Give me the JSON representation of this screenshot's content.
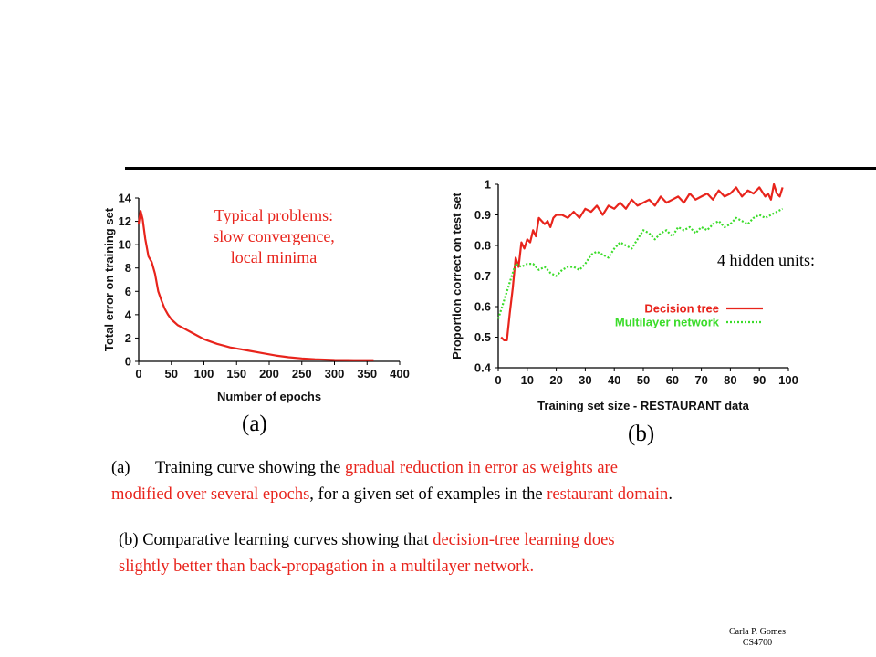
{
  "slide": {
    "note_a": [
      "Typical problems:",
      "slow convergence,",
      "local minima"
    ],
    "note_b": "4 hidden units:",
    "label_a": "(a)",
    "label_b": "(b)",
    "caption_a": {
      "marker": "(a)",
      "line1_black": "Training curve showing the ",
      "line1_red": "gradual reduction in error as weights are",
      "line2_red": "modified over several epochs",
      "line2_black1": ", for a given set of examples in the ",
      "line2_red2": "restaurant domain",
      "line2_black2": "."
    },
    "caption_b": {
      "line1_black": "(b) Comparative learning curves showing that ",
      "line1_red": "decision-tree learning  does",
      "line2_red": "slightly better than back-propagation in a multilayer network."
    },
    "footer": [
      "Carla P. Gomes",
      "CS4700"
    ]
  },
  "chart_data": [
    {
      "type": "line",
      "xlabel": "Number of epochs",
      "ylabel": "Total error on training set",
      "xlim": [
        0,
        400
      ],
      "ylim": [
        0,
        14
      ],
      "xticks": [
        0,
        50,
        100,
        150,
        200,
        250,
        300,
        350,
        400
      ],
      "yticks": [
        0,
        2,
        4,
        6,
        8,
        10,
        12,
        14
      ],
      "color": "#e8241c",
      "series": [
        {
          "x": [
            0,
            3,
            6,
            10,
            15,
            20,
            25,
            30,
            35,
            40,
            45,
            50,
            60,
            70,
            80,
            90,
            100,
            110,
            120,
            130,
            140,
            150,
            170,
            190,
            210,
            230,
            250,
            270,
            300,
            330,
            360
          ],
          "values": [
            11.8,
            12.9,
            12.2,
            10.5,
            9.0,
            8.5,
            7.5,
            6.0,
            5.2,
            4.5,
            4.0,
            3.6,
            3.1,
            2.8,
            2.5,
            2.2,
            1.9,
            1.7,
            1.5,
            1.35,
            1.2,
            1.1,
            0.9,
            0.7,
            0.5,
            0.35,
            0.25,
            0.18,
            0.12,
            0.1,
            0.1
          ]
        }
      ]
    },
    {
      "type": "line",
      "xlabel": "Training set size - RESTAURANT data",
      "ylabel": "Proportion correct on test set",
      "xlim": [
        0,
        100
      ],
      "ylim": [
        0.4,
        1
      ],
      "xticks": [
        0,
        10,
        20,
        30,
        40,
        50,
        60,
        70,
        80,
        90,
        100
      ],
      "yticks": [
        0.4,
        0.5,
        0.6,
        0.7,
        0.8,
        0.9,
        1
      ],
      "legend": "lower-right",
      "series": [
        {
          "name": "Decision tree",
          "color": "#e8241c",
          "dash": "",
          "x": [
            1,
            2,
            3,
            4,
            5,
            6,
            7,
            8,
            9,
            10,
            11,
            12,
            13,
            14,
            15,
            16,
            17,
            18,
            19,
            20,
            22,
            24,
            26,
            28,
            30,
            32,
            34,
            36,
            38,
            40,
            42,
            44,
            46,
            48,
            50,
            52,
            54,
            56,
            58,
            60,
            62,
            64,
            66,
            68,
            70,
            72,
            74,
            76,
            78,
            80,
            82,
            84,
            86,
            88,
            90,
            92,
            93,
            94,
            95,
            96,
            97,
            98
          ],
          "values": [
            0.5,
            0.49,
            0.49,
            0.58,
            0.66,
            0.76,
            0.73,
            0.81,
            0.79,
            0.82,
            0.81,
            0.85,
            0.83,
            0.89,
            0.88,
            0.87,
            0.88,
            0.86,
            0.89,
            0.9,
            0.9,
            0.89,
            0.91,
            0.89,
            0.92,
            0.91,
            0.93,
            0.9,
            0.93,
            0.92,
            0.94,
            0.92,
            0.95,
            0.93,
            0.94,
            0.95,
            0.93,
            0.96,
            0.94,
            0.95,
            0.96,
            0.94,
            0.97,
            0.95,
            0.96,
            0.97,
            0.95,
            0.98,
            0.96,
            0.97,
            0.99,
            0.96,
            0.98,
            0.97,
            0.99,
            0.96,
            0.97,
            0.95,
            1.0,
            0.97,
            0.96,
            0.99
          ]
        },
        {
          "name": "Multilayer network",
          "color": "#3bdc2a",
          "dash": "2,2",
          "x": [
            0,
            2,
            4,
            6,
            8,
            10,
            12,
            14,
            16,
            18,
            20,
            22,
            24,
            26,
            28,
            30,
            32,
            34,
            36,
            38,
            40,
            42,
            44,
            46,
            48,
            50,
            52,
            54,
            56,
            58,
            60,
            62,
            64,
            66,
            68,
            70,
            72,
            74,
            76,
            78,
            80,
            82,
            84,
            86,
            88,
            90,
            92,
            94,
            96,
            98
          ],
          "values": [
            0.56,
            0.62,
            0.68,
            0.74,
            0.73,
            0.74,
            0.74,
            0.72,
            0.73,
            0.71,
            0.7,
            0.72,
            0.73,
            0.73,
            0.72,
            0.74,
            0.77,
            0.78,
            0.77,
            0.76,
            0.79,
            0.81,
            0.8,
            0.79,
            0.82,
            0.85,
            0.84,
            0.82,
            0.84,
            0.85,
            0.83,
            0.86,
            0.85,
            0.86,
            0.84,
            0.86,
            0.85,
            0.87,
            0.88,
            0.86,
            0.87,
            0.89,
            0.88,
            0.87,
            0.89,
            0.9,
            0.89,
            0.9,
            0.91,
            0.92
          ]
        }
      ]
    }
  ]
}
